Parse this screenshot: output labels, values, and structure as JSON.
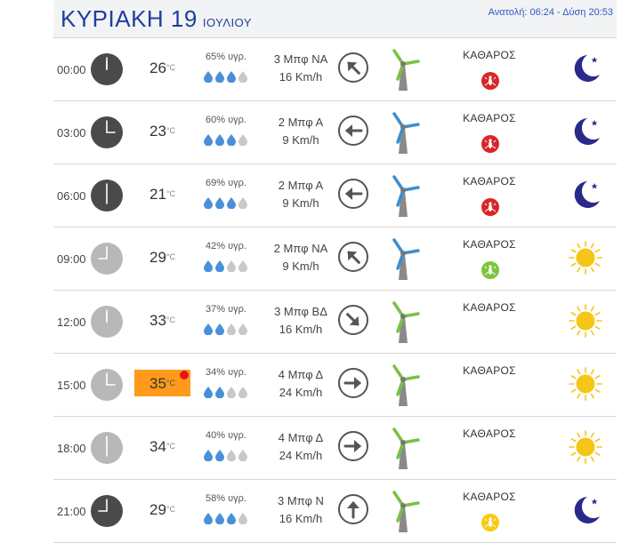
{
  "header": {
    "day": "ΚΥΡΙΑΚΗ 19",
    "month": "ΙΟΥΛΙΟΥ",
    "sun_times": "Ανατολή: 06:24 - Δύση 20:53"
  },
  "units": {
    "temp": "°C"
  },
  "colors": {
    "title_blue": "#1f3f9e",
    "hot_temp_bg": "#ff9a1a",
    "drop_blue": "#4a90d9",
    "drop_grey": "#c8c8c8",
    "moon": "#2a2a8a",
    "sun": "#f5c518",
    "turbine_green": "#7ac143",
    "turbine_blue": "#3a8fd0"
  },
  "rows": [
    {
      "time": "00:00",
      "clock": "dark",
      "hour_hand": 0,
      "temp": "26",
      "hot": false,
      "humidity": "65% υγρ.",
      "drops": 3,
      "wind_force": "3 Μπφ ΝΑ",
      "wind_speed": "16 Km/h",
      "wind_arrow": "NW",
      "turbine": "green",
      "condition": "ΚΑΘΑΡΟΣ",
      "badge": "red",
      "badge_icon": "mosquito-icon",
      "sky": "moon"
    },
    {
      "time": "03:00",
      "clock": "dark",
      "hour_hand": 3,
      "temp": "23",
      "hot": false,
      "humidity": "60% υγρ.",
      "drops": 3,
      "wind_force": "2 Μπφ Α",
      "wind_speed": "9 Km/h",
      "wind_arrow": "W",
      "turbine": "blue",
      "condition": "ΚΑΘΑΡΟΣ",
      "badge": "red",
      "badge_icon": "mosquito-icon",
      "sky": "moon"
    },
    {
      "time": "06:00",
      "clock": "dark",
      "hour_hand": 6,
      "temp": "21",
      "hot": false,
      "humidity": "69% υγρ.",
      "drops": 3,
      "wind_force": "2 Μπφ Α",
      "wind_speed": "9 Km/h",
      "wind_arrow": "W",
      "turbine": "blue",
      "condition": "ΚΑΘΑΡΟΣ",
      "badge": "red",
      "badge_icon": "mosquito-icon",
      "sky": "moon"
    },
    {
      "time": "09:00",
      "clock": "light",
      "hour_hand": 9,
      "temp": "29",
      "hot": false,
      "humidity": "42% υγρ.",
      "drops": 2,
      "wind_force": "2 Μπφ ΝΑ",
      "wind_speed": "9 Km/h",
      "wind_arrow": "NW",
      "turbine": "blue",
      "condition": "ΚΑΘΑΡΟΣ",
      "badge": "green",
      "badge_icon": "mosquito-icon",
      "sky": "sun"
    },
    {
      "time": "12:00",
      "clock": "light",
      "hour_hand": 0,
      "temp": "33",
      "hot": false,
      "humidity": "37% υγρ.",
      "drops": 2,
      "wind_force": "3 Μπφ ΒΔ",
      "wind_speed": "16 Km/h",
      "wind_arrow": "SE",
      "turbine": "green",
      "condition": "ΚΑΘΑΡΟΣ",
      "badge": null,
      "sky": "sun"
    },
    {
      "time": "15:00",
      "clock": "light",
      "hour_hand": 3,
      "temp": "35",
      "hot": true,
      "humidity": "34% υγρ.",
      "drops": 2,
      "wind_force": "4 Μπφ Δ",
      "wind_speed": "24 Km/h",
      "wind_arrow": "E",
      "turbine": "green",
      "condition": "ΚΑΘΑΡΟΣ",
      "badge": null,
      "sky": "sun"
    },
    {
      "time": "18:00",
      "clock": "light",
      "hour_hand": 6,
      "temp": "34",
      "hot": false,
      "humidity": "40% υγρ.",
      "drops": 2,
      "wind_force": "4 Μπφ Δ",
      "wind_speed": "24 Km/h",
      "wind_arrow": "E",
      "turbine": "green",
      "condition": "ΚΑΘΑΡΟΣ",
      "badge": null,
      "sky": "sun"
    },
    {
      "time": "21:00",
      "clock": "dark",
      "hour_hand": 9,
      "temp": "29",
      "hot": false,
      "humidity": "58% υγρ.",
      "drops": 3,
      "wind_force": "3 Μπφ Ν",
      "wind_speed": "16 Km/h",
      "wind_arrow": "N",
      "turbine": "green",
      "condition": "ΚΑΘΑΡΟΣ",
      "badge": "yellow",
      "badge_icon": "mosquito-icon",
      "sky": "moon"
    }
  ]
}
